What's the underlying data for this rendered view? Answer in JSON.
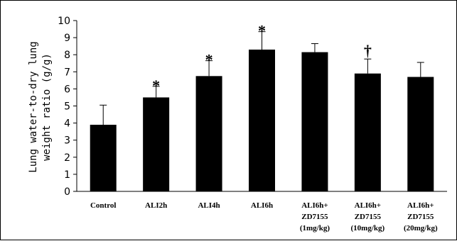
{
  "chart_data": {
    "type": "bar",
    "categories": [
      [
        "Control"
      ],
      [
        "ALI2h"
      ],
      [
        "ALI4h"
      ],
      [
        "ALI6h"
      ],
      [
        "ALI6h+",
        "ZD7155",
        "(1mg/kg)"
      ],
      [
        "ALI6h+",
        "ZD7155",
        "(10mg/kg)"
      ],
      [
        "ALI6h+",
        "ZD7155",
        "(20mg/kg)"
      ]
    ],
    "values": [
      3.9,
      5.5,
      6.75,
      8.3,
      8.15,
      6.9,
      6.7
    ],
    "errors": [
      1.15,
      0.65,
      0.9,
      1.05,
      0.5,
      0.85,
      0.85
    ],
    "markers": [
      "",
      "*",
      "*",
      "*",
      "",
      "†",
      ""
    ],
    "ylabel_lines": [
      "Lung water-to-dry lung",
      "weight ratio (g/g)"
    ],
    "ylim": [
      0,
      10
    ],
    "yticks": [
      0,
      1,
      2,
      3,
      4,
      5,
      6,
      7,
      8,
      9,
      10
    ],
    "bar_color": "#000000",
    "grid": false
  }
}
